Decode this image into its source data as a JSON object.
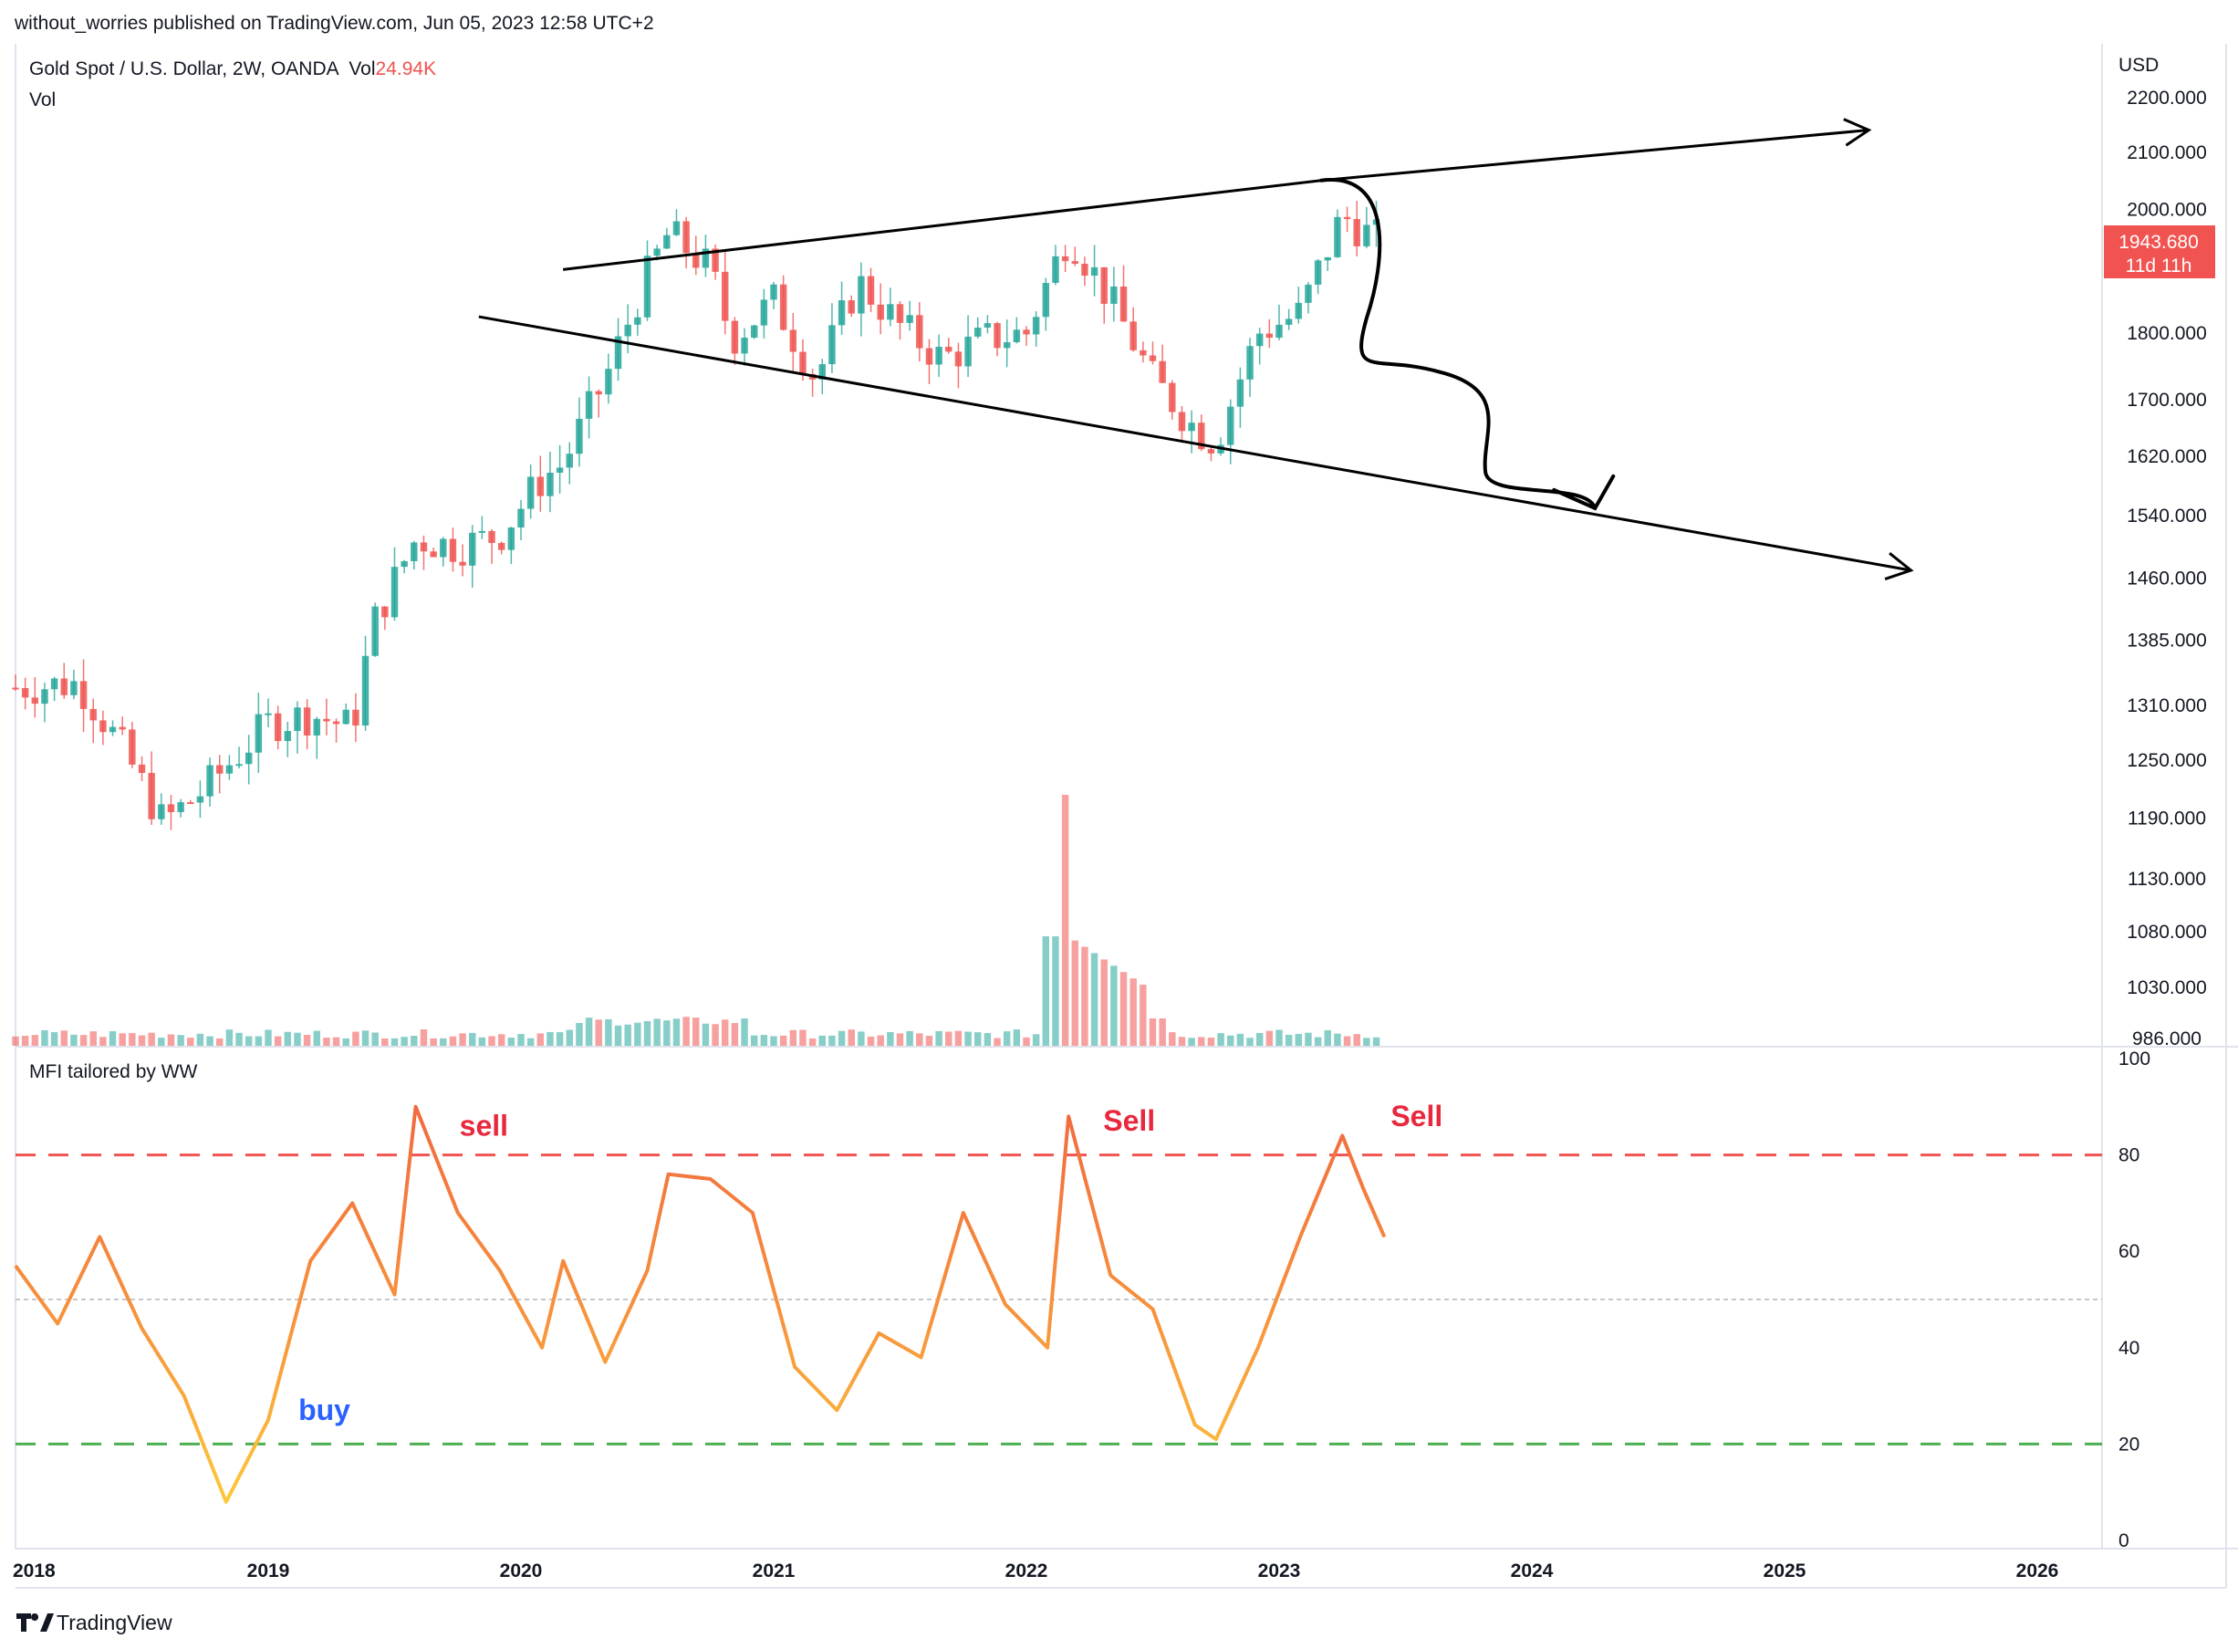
{
  "header": {
    "published": "without_worries published on TradingView.com, Jun 05, 2023 12:58 UTC+2"
  },
  "legend": {
    "symbol": "Gold Spot / U.S. Dollar, 2W, OANDA",
    "vol_label": "Vol",
    "vol_value": "24.94K",
    "vol_row": "Vol"
  },
  "price_axis": {
    "currency": "USD",
    "ticks": [
      "2200.000",
      "2100.000",
      "2000.000",
      "1800.000",
      "1700.000",
      "1620.000",
      "1540.000",
      "1460.000",
      "1385.000",
      "1310.000",
      "1250.000",
      "1190.000",
      "1130.000",
      "1080.000",
      "1030.000",
      "986.000"
    ],
    "last_price": "1943.680",
    "countdown": "11d 11h",
    "last_price_color": "#f05350"
  },
  "indicator": {
    "title": "MFI tailored by WW",
    "ticks": [
      "100",
      "80",
      "60",
      "40",
      "20",
      "0"
    ],
    "annotations": [
      {
        "text": "sell",
        "color": "#e8283d"
      },
      {
        "text": "Sell",
        "color": "#e8283d"
      },
      {
        "text": "Sell",
        "color": "#e8283d"
      },
      {
        "text": "buy",
        "color": "#2962ff"
      }
    ]
  },
  "time_axis": {
    "ticks": [
      "2018",
      "2019",
      "2020",
      "2021",
      "2022",
      "2023",
      "2024",
      "2025",
      "2026"
    ]
  },
  "footer": {
    "brand": "TradingView"
  },
  "colors": {
    "up": "#26a69a",
    "down": "#ef5350",
    "upper_band": "#f05350",
    "lower_band": "#4caf50",
    "mfi_high": "#f0613f",
    "mfi_low": "#ffd23a"
  },
  "chart_data": [
    {
      "type": "candlestick",
      "title": "Gold Spot / U.S. Dollar, 2W, OANDA",
      "ylabel": "USD",
      "y_scale": "log",
      "ylim": [
        986,
        2200
      ],
      "x_range": [
        "2018-01",
        "2026-01"
      ],
      "price_anchors": [
        {
          "date": "2018-01",
          "close": 1330
        },
        {
          "date": "2018-04",
          "close": 1335
        },
        {
          "date": "2018-06",
          "close": 1265
        },
        {
          "date": "2018-08",
          "close": 1185
        },
        {
          "date": "2018-10",
          "close": 1220
        },
        {
          "date": "2019-01",
          "close": 1290
        },
        {
          "date": "2019-03",
          "close": 1300
        },
        {
          "date": "2019-05",
          "close": 1285
        },
        {
          "date": "2019-06",
          "close": 1405
        },
        {
          "date": "2019-08",
          "close": 1510
        },
        {
          "date": "2019-10",
          "close": 1500
        },
        {
          "date": "2019-12",
          "close": 1515
        },
        {
          "date": "2020-02",
          "close": 1590
        },
        {
          "date": "2020-03",
          "close": 1610
        },
        {
          "date": "2020-05",
          "close": 1730
        },
        {
          "date": "2020-07",
          "close": 1890
        },
        {
          "date": "2020-08",
          "close": 1960
        },
        {
          "date": "2020-10",
          "close": 1900
        },
        {
          "date": "2020-11",
          "close": 1790
        },
        {
          "date": "2021-01",
          "close": 1850
        },
        {
          "date": "2021-03",
          "close": 1730
        },
        {
          "date": "2021-05",
          "close": 1880
        },
        {
          "date": "2021-07",
          "close": 1810
        },
        {
          "date": "2021-09",
          "close": 1760
        },
        {
          "date": "2021-11",
          "close": 1790
        },
        {
          "date": "2022-01",
          "close": 1800
        },
        {
          "date": "2022-03",
          "close": 1960
        },
        {
          "date": "2022-05",
          "close": 1850
        },
        {
          "date": "2022-07",
          "close": 1730
        },
        {
          "date": "2022-09",
          "close": 1660
        },
        {
          "date": "2022-10",
          "close": 1640
        },
        {
          "date": "2022-12",
          "close": 1800
        },
        {
          "date": "2023-02",
          "close": 1830
        },
        {
          "date": "2023-04",
          "close": 1990
        },
        {
          "date": "2023-05",
          "close": 1963
        },
        {
          "date": "2023-06",
          "close": 1943.68
        }
      ],
      "trendlines": [
        {
          "from": {
            "date": "2020-03",
            "price": 1900
          },
          "to": {
            "date": "2023-03",
            "price": 2050
          }
        },
        {
          "from": {
            "date": "2023-03",
            "price": 2050
          },
          "to": {
            "date": "2025-05",
            "price": 2140
          }
        },
        {
          "from": {
            "date": "2019-11",
            "price": 1825
          },
          "to": {
            "date": "2025-07",
            "price": 1470
          }
        }
      ],
      "volume_note": "Volume histogram at bottom of price pane; spike around 2022-03"
    },
    {
      "type": "line",
      "title": "MFI tailored by WW",
      "ylim": [
        0,
        100
      ],
      "bands": {
        "upper": 80,
        "middle": 50,
        "lower": 20
      },
      "x": [
        "2018-01",
        "2018-03",
        "2018-05",
        "2018-07",
        "2018-09",
        "2018-11",
        "2019-01",
        "2019-03",
        "2019-05",
        "2019-07",
        "2019-08",
        "2019-10",
        "2019-12",
        "2020-02",
        "2020-03",
        "2020-05",
        "2020-07",
        "2020-08",
        "2020-10",
        "2020-12",
        "2021-02",
        "2021-04",
        "2021-06",
        "2021-08",
        "2021-10",
        "2021-12",
        "2022-02",
        "2022-03",
        "2022-05",
        "2022-07",
        "2022-09",
        "2022-10",
        "2022-12",
        "2023-02",
        "2023-04",
        "2023-05",
        "2023-06"
      ],
      "values": [
        57,
        45,
        63,
        44,
        30,
        8,
        25,
        58,
        70,
        51,
        90,
        68,
        56,
        40,
        58,
        37,
        56,
        76,
        75,
        68,
        36,
        27,
        43,
        38,
        68,
        49,
        40,
        88,
        55,
        48,
        24,
        21,
        40,
        63,
        84,
        73,
        63
      ]
    }
  ]
}
